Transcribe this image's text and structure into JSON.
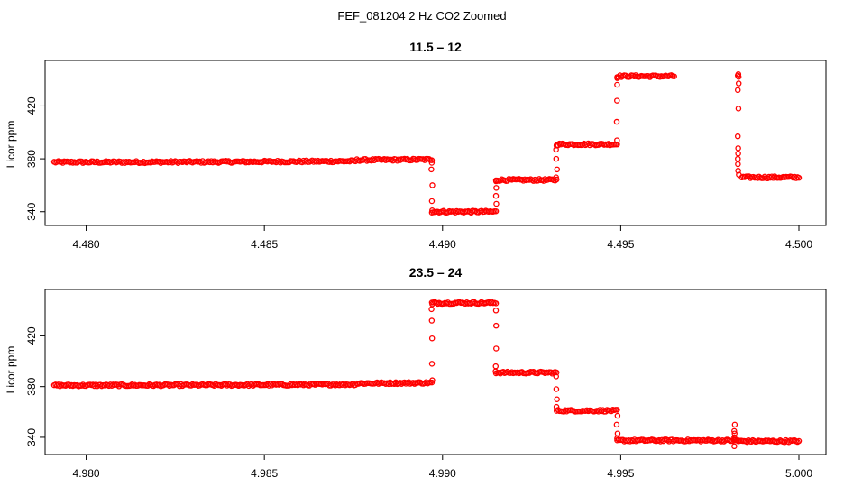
{
  "figure": {
    "title": "FEF_081204  2 Hz CO2 Zoomed"
  },
  "colors": {
    "points": "#ff0000",
    "axis": "#000000",
    "background": "#ffffff"
  },
  "chart_data": [
    {
      "type": "scatter",
      "title": "11.5 – 12",
      "xlabel": "",
      "ylabel": "Licor ppm",
      "xlim": [
        4.4791,
        4.5
      ],
      "ylim": [
        333,
        451
      ],
      "grid": false,
      "xticks": [
        4.48,
        4.485,
        4.49,
        4.495,
        4.5
      ],
      "xtick_labels": [
        "4.480",
        "4.485",
        "4.490",
        "4.495",
        "4.500"
      ],
      "yticks": [
        340,
        380,
        420
      ],
      "ytick_labels": [
        "340",
        "380",
        "420"
      ],
      "segments": [
        {
          "x0": 4.4791,
          "x1": 4.4897,
          "y0": 377.5,
          "y1": 379.5
        },
        {
          "x0": 4.4897,
          "x1": 4.4915,
          "y": 340
        },
        {
          "x0": 4.4915,
          "x1": 4.4932,
          "y": 364
        },
        {
          "x0": 4.4932,
          "x1": 4.4949,
          "y": 391
        },
        {
          "x0": 4.4949,
          "x1": 4.4965,
          "y": 442.5
        },
        {
          "x0": 4.4984,
          "x1": 4.5,
          "y": 366
        }
      ],
      "transitions": [
        {
          "x": 4.4897,
          "points": [
            377,
            372,
            360,
            348,
            341
          ]
        },
        {
          "x": 4.4915,
          "points": [
            346,
            352,
            358,
            363
          ]
        },
        {
          "x": 4.4932,
          "points": [
            366,
            372,
            380,
            387,
            390
          ]
        },
        {
          "x": 4.4949,
          "points": [
            394,
            408,
            424,
            436,
            441
          ]
        },
        {
          "x": 4.4983,
          "points": [
            442,
            444,
            443,
            437,
            432,
            418,
            397,
            388,
            384,
            380,
            376,
            371,
            368
          ]
        }
      ]
    },
    {
      "type": "scatter",
      "title": "23.5 – 24",
      "xlabel": "",
      "ylabel": "Licor ppm",
      "xlim": [
        4.9791,
        5.0
      ],
      "ylim": [
        330,
        453
      ],
      "grid": false,
      "xticks": [
        4.98,
        4.985,
        4.99,
        4.995,
        5.0
      ],
      "xtick_labels": [
        "4.980",
        "4.985",
        "4.990",
        "4.995",
        "5.000"
      ],
      "yticks": [
        340,
        380,
        420
      ],
      "ytick_labels": [
        "340",
        "380",
        "420"
      ],
      "segments": [
        {
          "x0": 4.9791,
          "x1": 4.9897,
          "y0": 381,
          "y1": 383
        },
        {
          "x0": 4.9897,
          "x1": 4.9915,
          "y": 446
        },
        {
          "x0": 4.9915,
          "x1": 4.9932,
          "y": 391
        },
        {
          "x0": 4.9932,
          "x1": 4.9949,
          "y": 361
        },
        {
          "x0": 4.9949,
          "x1": 4.9983,
          "y": 337.5
        },
        {
          "x0": 4.9983,
          "x1": 5.0,
          "y": 337
        }
      ],
      "transitions": [
        {
          "x": 4.9897,
          "points": [
            385,
            398,
            418,
            432,
            441,
            445
          ]
        },
        {
          "x": 4.9915,
          "points": [
            440,
            428,
            410,
            396,
            392
          ]
        },
        {
          "x": 4.9932,
          "points": [
            388,
            378,
            370,
            364
          ]
        },
        {
          "x": 4.9949,
          "points": [
            357,
            350,
            343,
            339
          ]
        },
        {
          "x": 4.9982,
          "points": [
            339,
            345,
            350,
            333,
            343,
            340,
            338
          ]
        }
      ]
    }
  ]
}
